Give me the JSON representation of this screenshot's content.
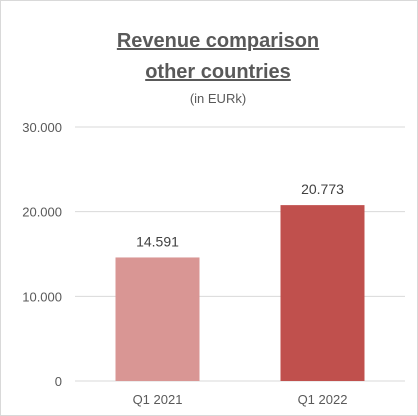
{
  "chart_data": {
    "type": "bar",
    "title_lines": [
      "Revenue comparison",
      "other countries"
    ],
    "subtitle": "(in EURk)",
    "categories": [
      "Q1 2021",
      "Q1 2022"
    ],
    "values": [
      14591,
      20773
    ],
    "value_labels": [
      "14.591",
      "20.773"
    ],
    "bar_colors": [
      "#d99694",
      "#c0504d"
    ],
    "ylim": [
      0,
      30000
    ],
    "yticks": [
      0,
      10000,
      20000,
      30000
    ],
    "ytick_labels": [
      "0",
      "10.000",
      "20.000",
      "30.000"
    ],
    "grid": true,
    "legend": "none",
    "xlabel": "",
    "ylabel": ""
  }
}
